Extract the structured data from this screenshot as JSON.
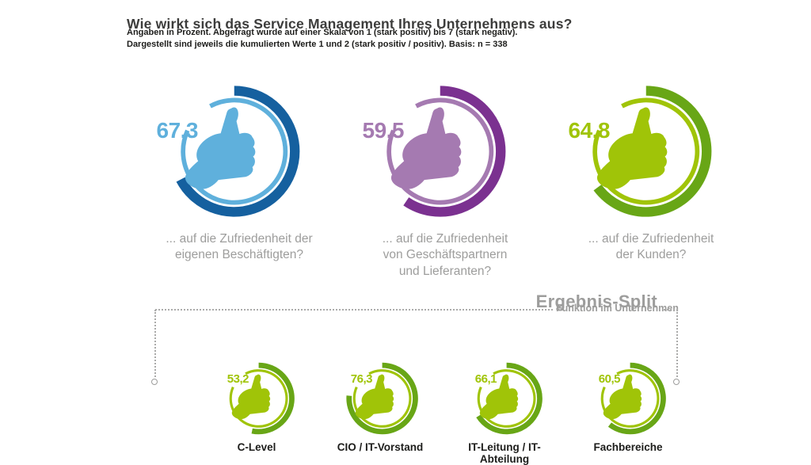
{
  "header": {
    "title": "Wie wirkt sich das Service Management Ihres Unternehmens aus?",
    "subtitle_line1": "Angaben in Prozent. Abgefragt wurde auf einer Skala von 1 (stark positiv) bis 7 (stark negativ).",
    "subtitle_line2": "Dargestellt sind jeweils die kumulierten Werte 1 und 2 (stark positiv / positiv). Basis: n = 338"
  },
  "big_gauges": [
    {
      "value": 67.3,
      "value_label": "67,3",
      "caption": "... auf die Zufriedenheit der\neigenen Beschäftigten?",
      "color_light": "#5fb0dc",
      "color_dark": "#15609f"
    },
    {
      "value": 59.5,
      "value_label": "59,5",
      "caption": "... auf die Zufriedenheit\nvon Geschäftspartnern\nund Lieferanten?",
      "color_light": "#a57ab1",
      "color_dark": "#7b3190"
    },
    {
      "value": 64.8,
      "value_label": "64,8",
      "caption": "... auf die Zufriedenheit\nder Kunden?",
      "color_light": "#a0c408",
      "color_dark": "#68a616"
    }
  ],
  "split": {
    "title": "Ergebnis-Split",
    "subtitle": "Funktion im Unternehmen"
  },
  "small_gauges": [
    {
      "value": 53.2,
      "value_label": "53,2",
      "label": "C-Level",
      "color_light": "#a0c408",
      "color_dark": "#68a616"
    },
    {
      "value": 76.3,
      "value_label": "76,3",
      "label": "CIO / IT-Vorstand",
      "color_light": "#a0c408",
      "color_dark": "#68a616"
    },
    {
      "value": 66.1,
      "value_label": "66,1",
      "label": "IT-Leitung / IT-Abteilung",
      "color_light": "#a0c408",
      "color_dark": "#68a616"
    },
    {
      "value": 60.5,
      "value_label": "60,5",
      "label": "Fachbereiche",
      "color_light": "#a0c408",
      "color_dark": "#68a616"
    }
  ],
  "chart_data": [
    {
      "type": "pie",
      "subtype": "gauge-donut-thumbs-up",
      "title": "Wie wirkt sich das Service Management Ihres Unternehmens aus?",
      "subtitle": "Angaben in Prozent. Abgefragt wurde auf einer Skala von 1 (stark positiv) bis 7 (stark negativ). Dargestellt sind jeweils die kumulierten Werte 1 und 2 (stark positiv / positiv). Basis: n = 338",
      "unit": "percent",
      "categories": [
        "... auf die Zufriedenheit der eigenen Beschäftigten?",
        "... auf die Zufriedenheit von Geschäftspartnern und Lieferanten?",
        "... auf die Zufriedenheit der Kunden?"
      ],
      "values": [
        67.3,
        59.5,
        64.8
      ],
      "colors": [
        "#5fb0dc",
        "#a57ab1",
        "#a0c408"
      ],
      "value_range": [
        0,
        100
      ],
      "arc_start": "12 o'clock, clockwise"
    },
    {
      "type": "pie",
      "subtype": "gauge-donut-thumbs-up",
      "title": "Ergebnis-Split",
      "subtitle": "Funktion im Unternehmen",
      "unit": "percent",
      "categories": [
        "C-Level",
        "CIO / IT-Vorstand",
        "IT-Leitung / IT-Abteilung",
        "Fachbereiche"
      ],
      "values": [
        53.2,
        76.3,
        66.1,
        60.5
      ],
      "colors": [
        "#a0c408",
        "#a0c408",
        "#a0c408",
        "#a0c408"
      ],
      "value_range": [
        0,
        100
      ],
      "arc_start": "12 o'clock, clockwise"
    }
  ]
}
